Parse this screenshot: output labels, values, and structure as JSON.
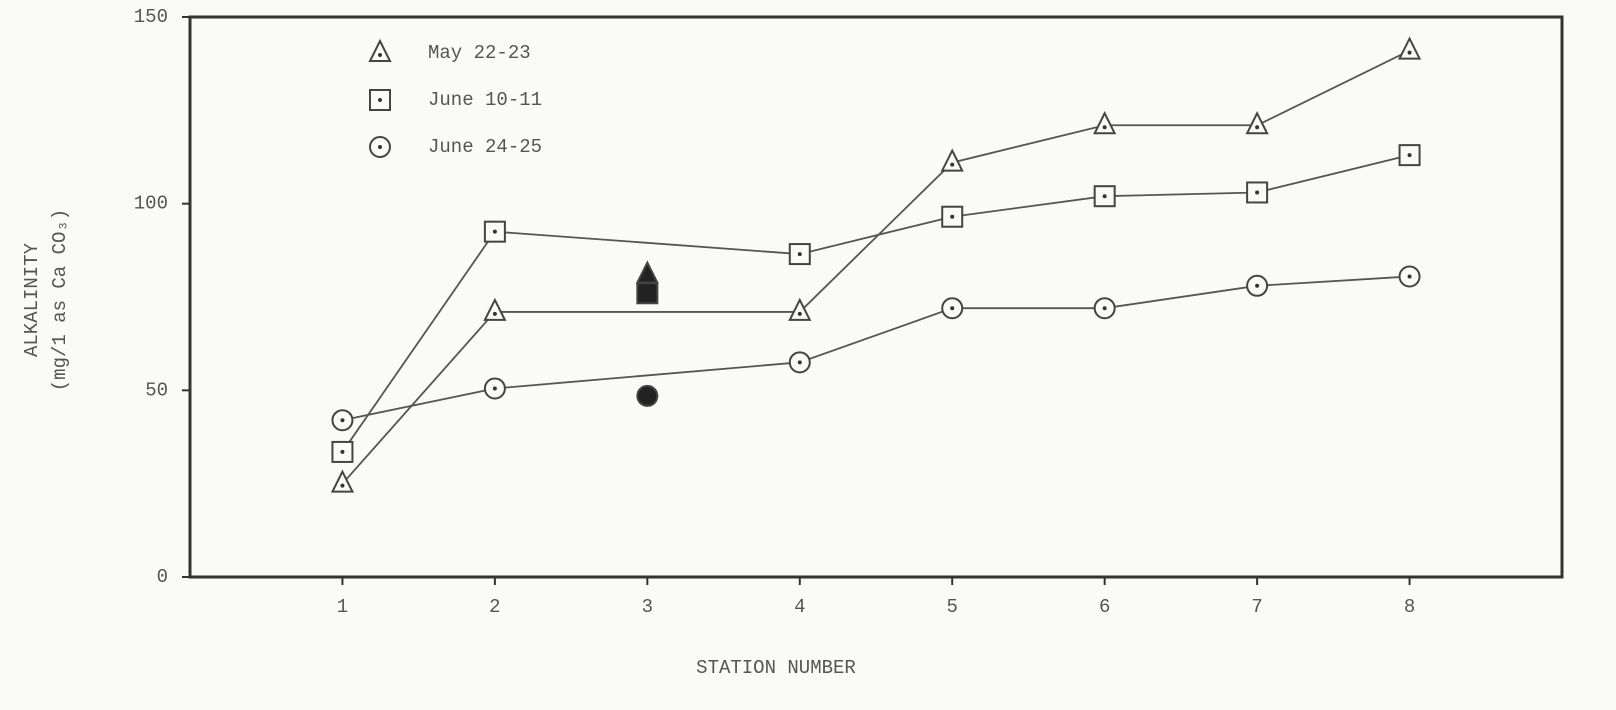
{
  "chart_data": {
    "type": "line",
    "x_label": "STATION NUMBER",
    "y_label": [
      "ALKALINITY",
      "(mg/1 as Ca CO₃)"
    ],
    "xlim": [
      0,
      9
    ],
    "xticks": [
      1,
      2,
      3,
      4,
      5,
      6,
      7,
      8
    ],
    "ylim": [
      0,
      150
    ],
    "yticks": [
      0,
      50,
      100,
      150
    ],
    "grid": false,
    "legend": "upper left",
    "color": "#555555",
    "series": [
      {
        "name": "May 22-23",
        "marker": "triangle",
        "x": [
          1,
          2,
          4,
          5,
          6,
          7,
          8
        ],
        "values": [
          25,
          71,
          71,
          111,
          121,
          121,
          141
        ]
      },
      {
        "name": "June 10-11",
        "marker": "square",
        "x": [
          1,
          2,
          4,
          5,
          6,
          7,
          8
        ],
        "values": [
          33.5,
          92.5,
          86.5,
          96.5,
          102,
          103,
          113
        ]
      },
      {
        "name": "June 24-25",
        "marker": "circle",
        "x": [
          1,
          2,
          4,
          5,
          6,
          7,
          8
        ],
        "values": [
          42,
          50.5,
          57.5,
          72,
          72,
          78,
          80.5
        ]
      },
      {
        "marker": "triangle",
        "filled": true,
        "x": [
          3
        ],
        "values": [
          81
        ]
      },
      {
        "marker": "square",
        "filled": true,
        "x": [
          3
        ],
        "values": [
          76
        ]
      },
      {
        "marker": "circle",
        "filled": true,
        "x": [
          3
        ],
        "values": [
          48.5
        ]
      }
    ]
  }
}
